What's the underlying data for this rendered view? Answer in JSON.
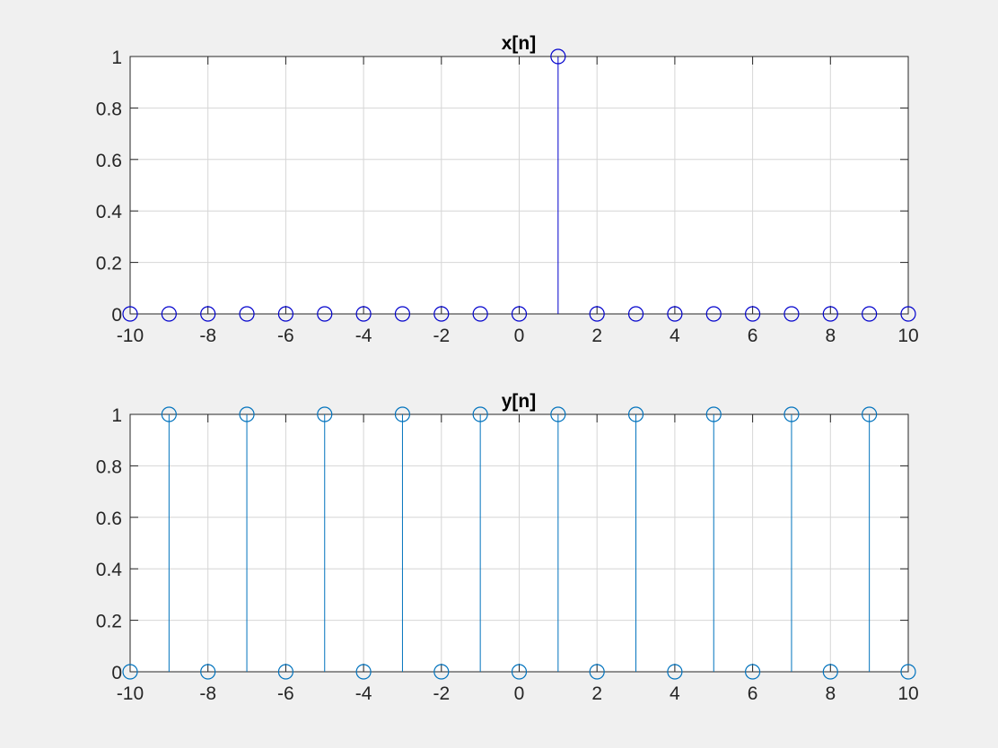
{
  "chart_data": [
    {
      "type": "stem",
      "title": "x[n]",
      "xlabel": "",
      "ylabel": "",
      "xlim": [
        -10,
        10
      ],
      "ylim": [
        0,
        1
      ],
      "xticks": [
        -10,
        -8,
        -6,
        -4,
        -2,
        0,
        2,
        4,
        6,
        8,
        10
      ],
      "yticks": [
        0,
        0.2,
        0.4,
        0.6,
        0.8,
        1
      ],
      "xtick_labels": [
        "-10",
        "-8",
        "-6",
        "-4",
        "-2",
        "0",
        "2",
        "4",
        "6",
        "8",
        "10"
      ],
      "ytick_labels": [
        "0",
        "0.2",
        "0.4",
        "0.6",
        "0.8",
        "1"
      ],
      "grid": true,
      "color": "#0000cc",
      "marker": "circle",
      "series": [
        {
          "x": [
            -10,
            -9,
            -8,
            -7,
            -6,
            -5,
            -4,
            -3,
            -2,
            -1,
            0,
            1,
            2,
            3,
            4,
            5,
            6,
            7,
            8,
            9,
            10
          ],
          "y": [
            0,
            0,
            0,
            0,
            0,
            0,
            0,
            0,
            0,
            0,
            0,
            1,
            0,
            0,
            0,
            0,
            0,
            0,
            0,
            0,
            0
          ]
        }
      ]
    },
    {
      "type": "stem",
      "title": "y[n]",
      "xlabel": "",
      "ylabel": "",
      "xlim": [
        -10,
        10
      ],
      "ylim": [
        0,
        1
      ],
      "xticks": [
        -10,
        -8,
        -6,
        -4,
        -2,
        0,
        2,
        4,
        6,
        8,
        10
      ],
      "yticks": [
        0,
        0.2,
        0.4,
        0.6,
        0.8,
        1
      ],
      "xtick_labels": [
        "-10",
        "-8",
        "-6",
        "-4",
        "-2",
        "0",
        "2",
        "4",
        "6",
        "8",
        "10"
      ],
      "ytick_labels": [
        "0",
        "0.2",
        "0.4",
        "0.6",
        "0.8",
        "1"
      ],
      "grid": true,
      "color": "#0072bd",
      "marker": "circle",
      "series": [
        {
          "x": [
            -10,
            -9,
            -8,
            -7,
            -6,
            -5,
            -4,
            -3,
            -2,
            -1,
            0,
            1,
            2,
            3,
            4,
            5,
            6,
            7,
            8,
            9,
            10
          ],
          "y": [
            0,
            1,
            0,
            1,
            0,
            1,
            0,
            1,
            0,
            1,
            0,
            1,
            0,
            1,
            0,
            1,
            0,
            1,
            0,
            1,
            0
          ]
        }
      ]
    }
  ]
}
